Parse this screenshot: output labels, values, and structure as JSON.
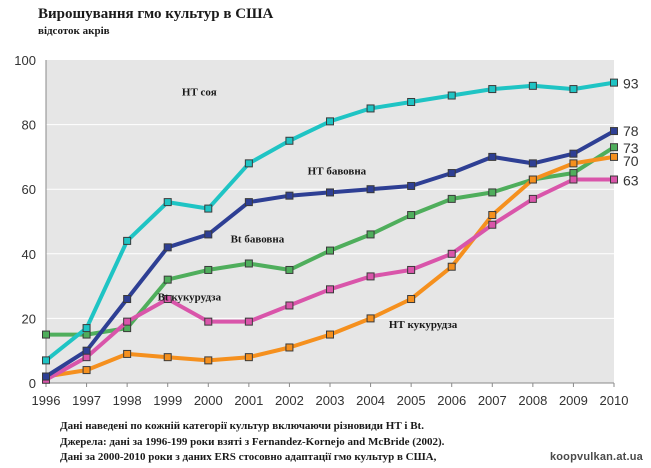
{
  "chart_data": {
    "type": "line",
    "title": "Вирошування гмо культур в США",
    "subtitle": "відсоток акрів",
    "x": [
      1996,
      1997,
      1998,
      1999,
      2000,
      2001,
      2002,
      2003,
      2004,
      2005,
      2006,
      2007,
      2008,
      2009,
      2010
    ],
    "ylim": [
      0,
      100
    ],
    "yticks": [
      0,
      20,
      40,
      60,
      80,
      100
    ],
    "grid": "horizontal",
    "series": [
      {
        "name": "Bt бавовна",
        "color": "#4fae5c",
        "end_label": "73",
        "values": [
          15,
          15,
          17,
          32,
          35,
          37,
          35,
          41,
          46,
          52,
          57,
          59,
          63,
          65,
          73
        ]
      },
      {
        "name": "НТ кукурудза",
        "color": "#f5901e",
        "end_label": "70",
        "values": [
          2,
          4,
          9,
          8,
          7,
          8,
          11,
          15,
          20,
          26,
          36,
          52,
          63,
          68,
          70
        ]
      },
      {
        "name": "Bt кукурудза",
        "color": "#d955aa",
        "end_label": "63",
        "values": [
          1,
          8,
          19,
          26,
          19,
          19,
          24,
          29,
          33,
          35,
          40,
          49,
          57,
          63,
          63
        ]
      },
      {
        "name": "НТ бавовна",
        "color": "#2e3f94",
        "end_label": "78",
        "values": [
          2,
          10,
          26,
          42,
          46,
          56,
          58,
          59,
          60,
          61,
          65,
          70,
          68,
          71,
          78
        ]
      },
      {
        "name": "НТ соя",
        "color": "#1fc4c4",
        "end_label": "93",
        "values": [
          7,
          17,
          44,
          56,
          54,
          68,
          75,
          81,
          85,
          87,
          89,
          91,
          92,
          91,
          93
        ]
      }
    ]
  },
  "notes": [
    "Дані наведені по кожній категорії культур включаючи різновиди НТ і Bt.",
    "Джерела: дані за 1996-199 роки взяті з Fernandez-Kornejo and  McBride (2002).",
    "Дані за 2000-2010 роки з даних ERS стосовно адаптації гмо культур в США,"
  ],
  "watermark": "koopvulkan.at.ua"
}
